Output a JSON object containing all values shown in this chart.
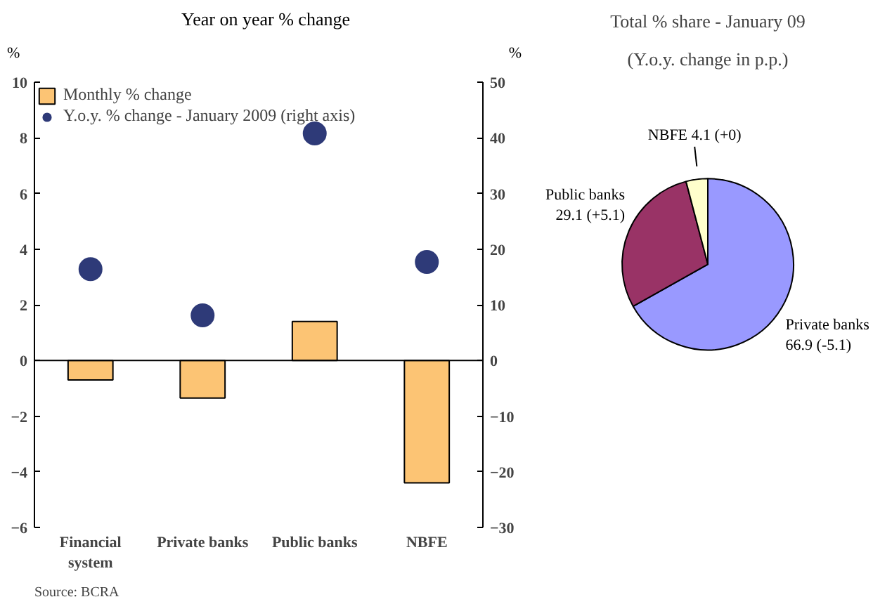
{
  "chart_data": [
    {
      "type": "bar",
      "title": "Year on year % change",
      "ylabel": "%",
      "y2label": "%",
      "categories": [
        "Financial system",
        "Private banks",
        "Public banks",
        "NBFE"
      ],
      "series": [
        {
          "name": "Monthly % change",
          "type": "bar",
          "color": "#fcc474",
          "values": [
            -0.7,
            -1.35,
            1.4,
            -4.4
          ]
        },
        {
          "name": "Y.o.y. % change - January 2009 (right axis)",
          "type": "scatter",
          "axis": "y2",
          "color": "#2e3a78",
          "values": [
            16.4,
            8.1,
            40.8,
            17.7
          ]
        }
      ],
      "ylim": [
        -6,
        10
      ],
      "yticks": [
        -6,
        -4,
        -2,
        0,
        2,
        4,
        6,
        8,
        10
      ],
      "y2lim": [
        -30,
        50
      ],
      "y2ticks": [
        -30,
        -20,
        -10,
        0,
        10,
        20,
        30,
        40,
        50
      ],
      "ref_lines": [
        {
          "axis": "y",
          "value": 0,
          "color": "#000000",
          "line_style": "solid"
        }
      ],
      "legend": "top left",
      "grid": false,
      "marker": "circle",
      "annotations": [
        "Source: BCRA"
      ]
    },
    {
      "type": "pie",
      "title": "Total % share - January 09",
      "subtitle": "(Y.o.y. change in p.p.)",
      "categories": [
        "Private banks",
        "Public banks",
        "NBFE"
      ],
      "values": [
        66.9,
        29.1,
        4.1
      ],
      "value_labels": [
        "66.9 (-5.1)",
        "29.1 (+5.1)",
        "4.1 (+0)"
      ],
      "colors": [
        "#9999ff",
        "#993366",
        "#ffffcc"
      ]
    }
  ]
}
